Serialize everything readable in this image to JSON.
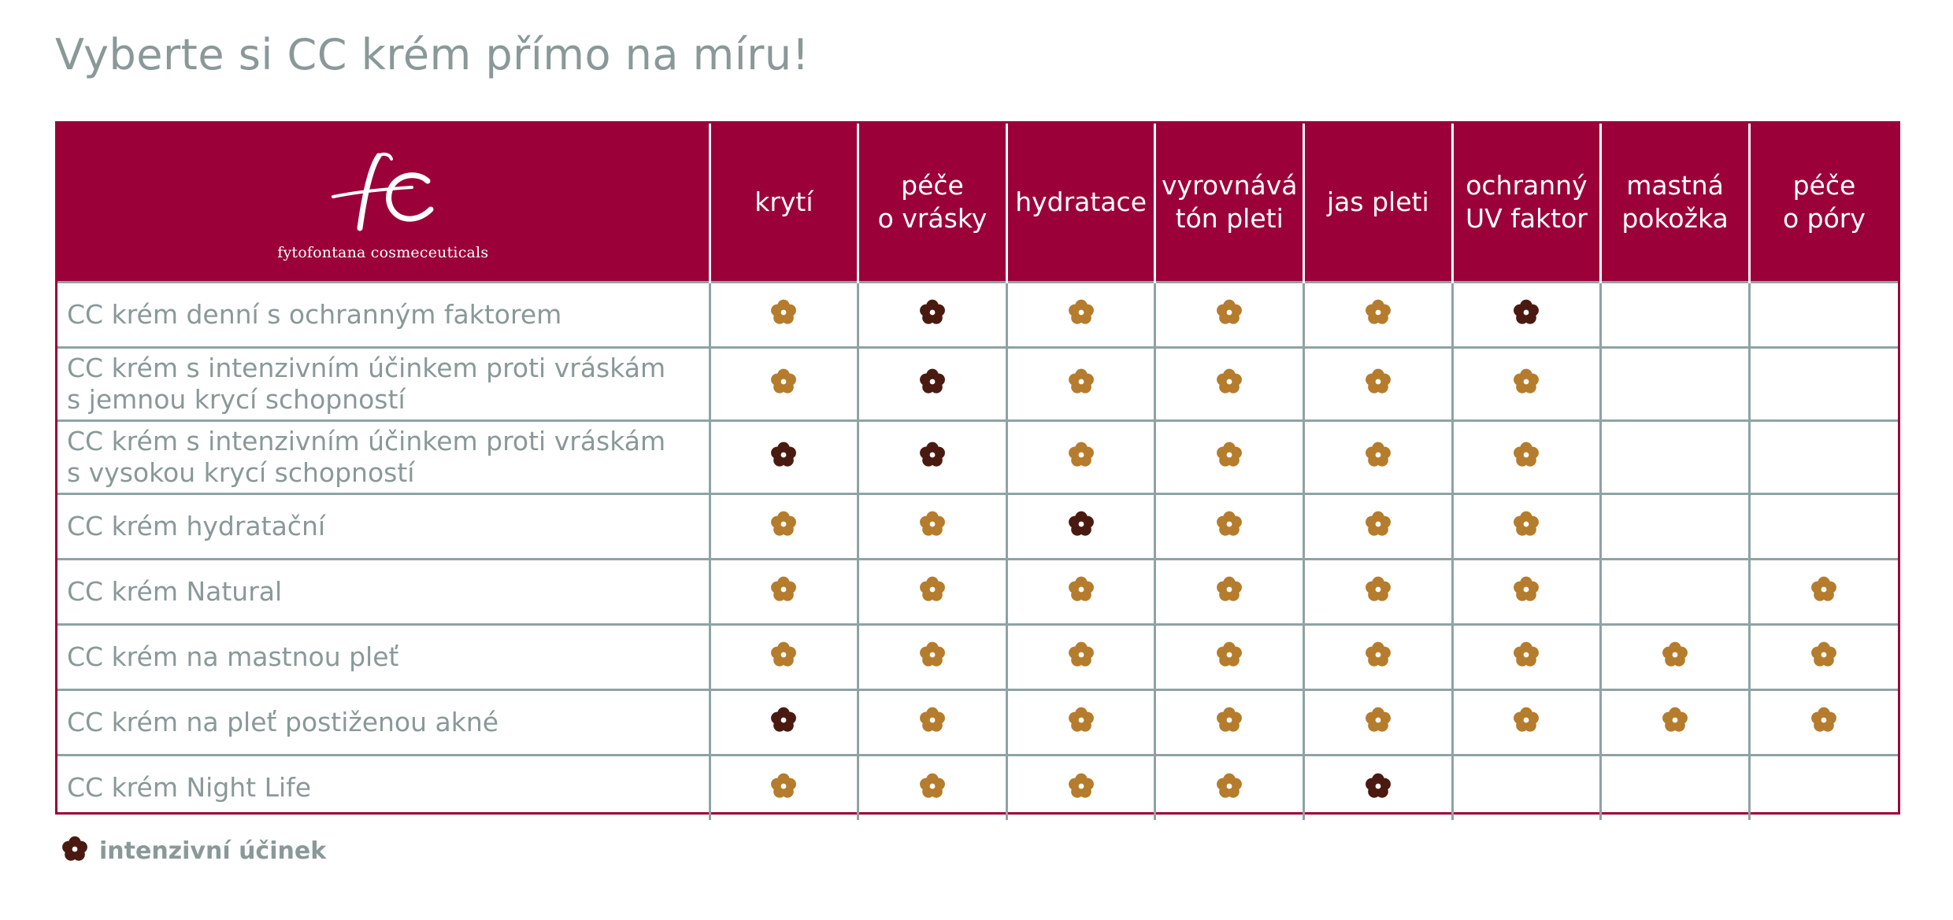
{
  "title": "Vyberte si CC krém přímo na míru!",
  "brand": {
    "monogram": "fc",
    "name": "fytofontana cosmeceuticals"
  },
  "colors": {
    "header_bg": "#9b0039",
    "grid_line": "#8fa3a3",
    "text_gray": "#8a9898",
    "flower_standard": "#b57c2d",
    "flower_intensive": "#4a1a10"
  },
  "columns": [
    {
      "id": "kryti",
      "label": "krytí"
    },
    {
      "id": "vrasky",
      "label": "péče\no vrásky"
    },
    {
      "id": "hydratace",
      "label": "hydratace"
    },
    {
      "id": "ton",
      "label": "vyrovnává\ntón pleti"
    },
    {
      "id": "jas",
      "label": "jas pleti"
    },
    {
      "id": "uv",
      "label": "ochranný\nUV faktor"
    },
    {
      "id": "mastna",
      "label": "mastná\npokožka"
    },
    {
      "id": "pory",
      "label": "péče\no póry"
    }
  ],
  "rows": [
    {
      "name": "CC krém denní s ochranným faktorem",
      "cells": [
        "standard",
        "intensive",
        "standard",
        "standard",
        "standard",
        "intensive",
        "",
        ""
      ]
    },
    {
      "name": "CC krém s intenzivním účinkem proti vráskám\ns jemnou krycí schopností",
      "cells": [
        "standard",
        "intensive",
        "standard",
        "standard",
        "standard",
        "standard",
        "",
        ""
      ]
    },
    {
      "name": "CC krém s intenzivním účinkem proti vráskám\ns vysokou krycí schopností",
      "cells": [
        "intensive",
        "intensive",
        "standard",
        "standard",
        "standard",
        "standard",
        "",
        ""
      ]
    },
    {
      "name": "CC krém hydratační",
      "cells": [
        "standard",
        "standard",
        "intensive",
        "standard",
        "standard",
        "standard",
        "",
        ""
      ]
    },
    {
      "name": "CC krém Natural",
      "cells": [
        "standard",
        "standard",
        "standard",
        "standard",
        "standard",
        "standard",
        "",
        "standard"
      ]
    },
    {
      "name": "CC krém na mastnou pleť",
      "cells": [
        "standard",
        "standard",
        "standard",
        "standard",
        "standard",
        "standard",
        "standard",
        "standard"
      ]
    },
    {
      "name": "CC krém na pleť postiženou akné",
      "cells": [
        "intensive",
        "standard",
        "standard",
        "standard",
        "standard",
        "standard",
        "standard",
        "standard"
      ]
    },
    {
      "name": "CC krém Night Life",
      "cells": [
        "standard",
        "standard",
        "standard",
        "standard",
        "intensive",
        "",
        "",
        ""
      ]
    }
  ],
  "row_heights": [
    83,
    93,
    93,
    83,
    83,
    83,
    83,
    83
  ],
  "legend": {
    "icon": "flower-icon",
    "kind": "intensive",
    "label": "intenzivní účinek"
  }
}
